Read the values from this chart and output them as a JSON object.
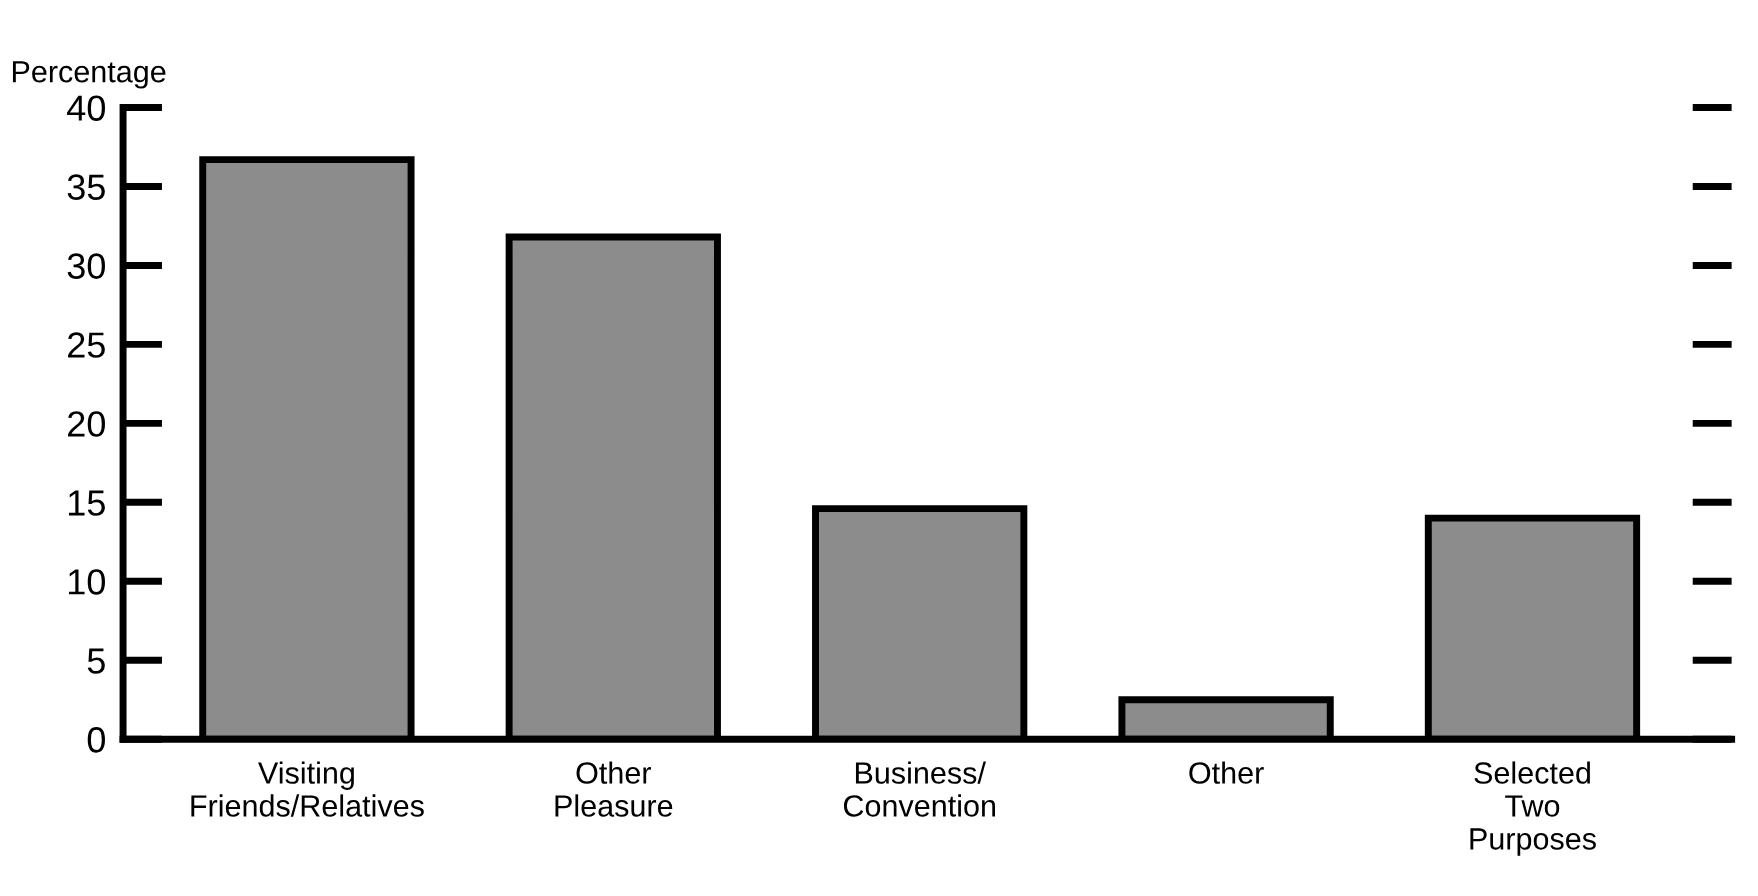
{
  "chart_data": {
    "type": "bar",
    "ylabel": "Percentage",
    "categories": [
      "Visiting\nFriends/Relatives",
      "Other\nPleasure",
      "Business/\nConvention",
      "Other",
      "Selected\nTwo\nPurposes"
    ],
    "values": [
      36.7,
      31.8,
      14.6,
      2.5,
      14.0
    ],
    "color": "#8c8c8c",
    "ylim": [
      0,
      40
    ],
    "yticks": [
      0,
      5,
      10,
      15,
      20,
      25,
      30,
      35,
      40
    ],
    "grid": false,
    "legend": false
  }
}
